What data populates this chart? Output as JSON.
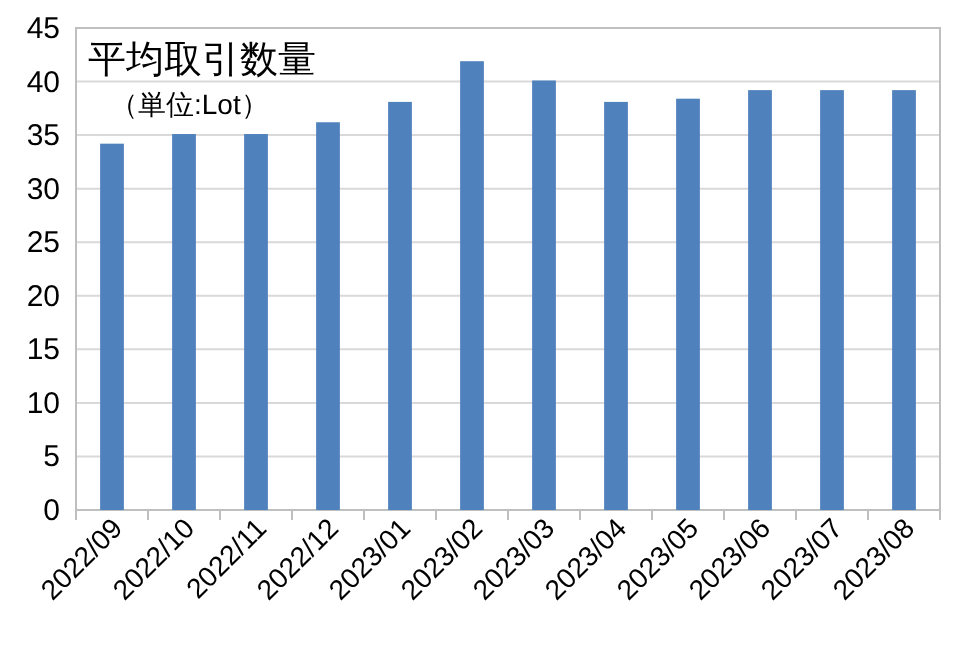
{
  "chart_data": {
    "type": "bar",
    "title": "平均取引数量",
    "subtitle": "（単位:Lot）",
    "categories": [
      "2022/09",
      "2022/10",
      "2022/11",
      "2022/12",
      "2023/01",
      "2023/02",
      "2023/03",
      "2023/04",
      "2023/05",
      "2023/06",
      "2023/07",
      "2023/08"
    ],
    "values": [
      34.2,
      35.1,
      35.1,
      36.2,
      38.1,
      41.9,
      40.1,
      38.1,
      38.4,
      39.2,
      39.2,
      39.2
    ],
    "color": "#4f81bd",
    "ylim": [
      0,
      45
    ],
    "yticks": [
      0,
      5,
      10,
      15,
      20,
      25,
      30,
      35,
      40,
      45
    ],
    "grid": "y"
  }
}
